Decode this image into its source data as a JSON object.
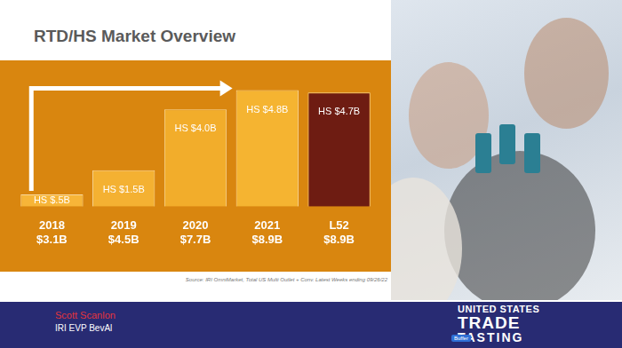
{
  "page": {
    "source": "Source: IRI OmniMarket, Total US Multi Outlet + Conv. Latest Weeks ending 09/26/22",
    "speaker": "Scott Scanlon",
    "speaker_title": "IRI EVP BevAl",
    "logo": [
      "UNITED STATES",
      "TRADE",
      "TASTING"
    ],
    "badge": "Buffer"
  },
  "chart_data": {
    "type": "bar",
    "title": "RTD/HS Market Overview",
    "categories": [
      "2018",
      "2019",
      "2020",
      "2021",
      "L52"
    ],
    "category_totals": [
      "$3.1B",
      "$4.5B",
      "$7.7B",
      "$8.9B",
      "$8.9B"
    ],
    "values": [
      0.5,
      1.5,
      4.0,
      4.8,
      4.7
    ],
    "value_labels": [
      "HS $.5B",
      "HS $1.5B",
      "HS $4.0B",
      "HS $4.8B",
      "HS $4.7B"
    ],
    "colors": [
      "#f7b538",
      "#f4b132",
      "#f2ad2b",
      "#f5b431",
      "#6e1c12"
    ],
    "ylim": [
      0,
      5
    ],
    "grid": false,
    "data_labels": true,
    "tick_labels": "x"
  }
}
